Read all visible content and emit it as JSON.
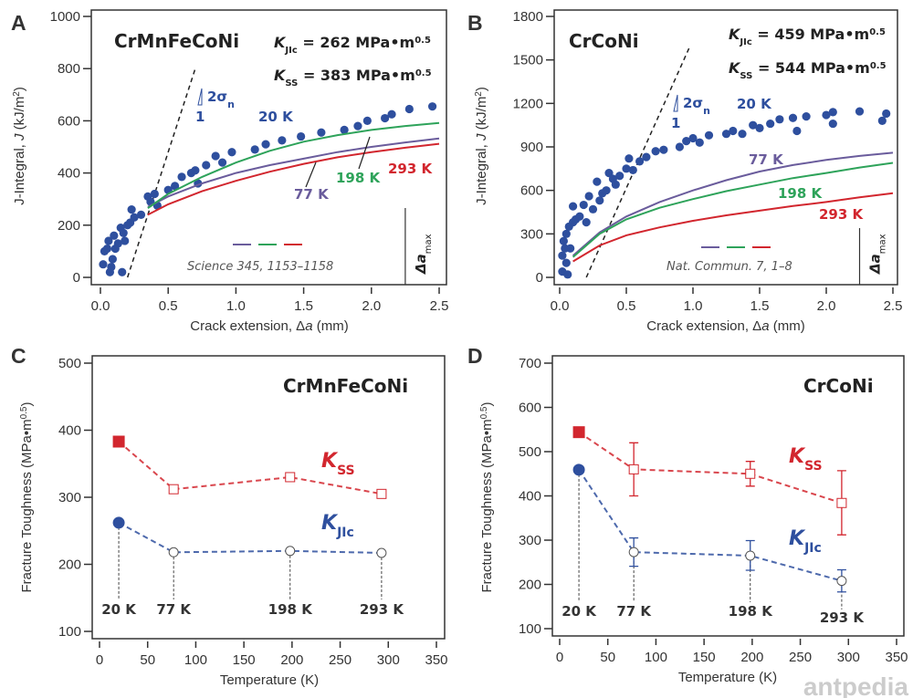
{
  "colors": {
    "blue": "#2e4f9e",
    "purple": "#6a5c9c",
    "green": "#2ea35a",
    "red": "#d2262e",
    "dash": "#222",
    "kss": "#d2262e",
    "kjic": "#2e4f9e"
  },
  "watermark": "antpedia",
  "chart_data": [
    {
      "panel": "A",
      "type": "scatter+line",
      "title": "CrMnFeCoNi",
      "kjic": {
        "symbol": "K",
        "sub": "JIc",
        "text": " = 262 MPa•m",
        "sup": "0.5"
      },
      "kss": {
        "symbol": "K",
        "sub": "SS",
        "text": " = 383 MPa•m",
        "sup": "0.5"
      },
      "xlabel": {
        "pre": "Crack extension, ",
        "sym": "Δ",
        "ital": "a",
        "post": " (mm)"
      },
      "ylabel": {
        "pre": "J-Integral, ",
        "ital": "J",
        "post": " (kJ/m",
        "sup": "2",
        "end": ")"
      },
      "xlim": [
        0,
        2.5
      ],
      "ylim": [
        0,
        1000
      ],
      "xticks": [
        "0.0",
        "0.5",
        "1.0",
        "1.5",
        "2.0",
        "2.5"
      ],
      "xtickvals": [
        0,
        0.5,
        1,
        1.5,
        2,
        2.5
      ],
      "yticks": [
        "0",
        "200",
        "400",
        "600",
        "800",
        "1000"
      ],
      "ytickvals": [
        0,
        200,
        400,
        600,
        800,
        1000
      ],
      "slope_label": {
        "text": "2σ",
        "sub": "n",
        "one": "1"
      },
      "blunting_line": [
        [
          0.2,
          0
        ],
        [
          0.7,
          800
        ]
      ],
      "reference": "Science 345, 1153–1158",
      "delta_a_max": {
        "sym": "Δa",
        "sub": "max",
        "x": 2.25
      },
      "series": [
        {
          "name": "20 K",
          "kind": "scatter",
          "color": "blue",
          "points": [
            [
              0.02,
              50
            ],
            [
              0.03,
              100
            ],
            [
              0.05,
              110
            ],
            [
              0.06,
              140
            ],
            [
              0.07,
              20
            ],
            [
              0.08,
              40
            ],
            [
              0.09,
              70
            ],
            [
              0.1,
              160
            ],
            [
              0.11,
              110
            ],
            [
              0.13,
              130
            ],
            [
              0.15,
              190
            ],
            [
              0.16,
              20
            ],
            [
              0.17,
              170
            ],
            [
              0.18,
              140
            ],
            [
              0.2,
              200
            ],
            [
              0.22,
              210
            ],
            [
              0.23,
              260
            ],
            [
              0.25,
              230
            ],
            [
              0.3,
              240
            ],
            [
              0.35,
              310
            ],
            [
              0.37,
              290
            ],
            [
              0.4,
              320
            ],
            [
              0.42,
              275
            ],
            [
              0.5,
              335
            ],
            [
              0.55,
              350
            ],
            [
              0.6,
              385
            ],
            [
              0.67,
              400
            ],
            [
              0.7,
              410
            ],
            [
              0.72,
              360
            ],
            [
              0.78,
              430
            ],
            [
              0.85,
              465
            ],
            [
              0.9,
              440
            ],
            [
              0.97,
              480
            ],
            [
              1.14,
              490
            ],
            [
              1.22,
              510
            ],
            [
              1.34,
              525
            ],
            [
              1.48,
              540
            ],
            [
              1.63,
              555
            ],
            [
              1.8,
              565
            ],
            [
              1.9,
              580
            ],
            [
              1.97,
              600
            ],
            [
              2.1,
              610
            ],
            [
              2.15,
              625
            ],
            [
              2.28,
              645
            ],
            [
              2.45,
              655
            ]
          ]
        },
        {
          "name": "77 K",
          "kind": "line",
          "color": "purple",
          "points": [
            [
              0.35,
              270
            ],
            [
              0.5,
              310
            ],
            [
              0.75,
              360
            ],
            [
              1.0,
              400
            ],
            [
              1.25,
              430
            ],
            [
              1.5,
              455
            ],
            [
              1.75,
              480
            ],
            [
              2.0,
              500
            ],
            [
              2.25,
              517
            ],
            [
              2.5,
              532
            ]
          ]
        },
        {
          "name": "198 K",
          "kind": "line",
          "color": "green",
          "points": [
            [
              0.35,
              265
            ],
            [
              0.5,
              320
            ],
            [
              0.75,
              385
            ],
            [
              1.0,
              440
            ],
            [
              1.25,
              485
            ],
            [
              1.5,
              520
            ],
            [
              1.75,
              545
            ],
            [
              2.0,
              565
            ],
            [
              2.25,
              580
            ],
            [
              2.5,
              592
            ]
          ]
        },
        {
          "name": "293 K",
          "kind": "line",
          "color": "red",
          "points": [
            [
              0.35,
              240
            ],
            [
              0.5,
              280
            ],
            [
              0.75,
              330
            ],
            [
              1.0,
              370
            ],
            [
              1.25,
              405
            ],
            [
              1.5,
              435
            ],
            [
              1.75,
              460
            ],
            [
              2.0,
              480
            ],
            [
              2.25,
              497
            ],
            [
              2.5,
              512
            ]
          ]
        }
      ]
    },
    {
      "panel": "B",
      "type": "scatter+line",
      "title": "CrCoNi",
      "kjic": {
        "symbol": "K",
        "sub": "JIc",
        "text": " = 459 MPa•m",
        "sup": "0.5"
      },
      "kss": {
        "symbol": "K",
        "sub": "SS",
        "text": " = 544 MPa•m",
        "sup": "0.5"
      },
      "xlabel": {
        "pre": "Crack extension, ",
        "sym": "Δ",
        "ital": "a",
        "post": " (mm)"
      },
      "ylabel": {
        "pre": "J-Integral, ",
        "ital": "J",
        "post": " (kJ/m",
        "sup": "2",
        "end": ")"
      },
      "xlim": [
        0,
        2.5
      ],
      "ylim": [
        0,
        1800
      ],
      "xticks": [
        "0.0",
        "0.5",
        "1.0",
        "1.5",
        "2.0",
        "2.5"
      ],
      "xtickvals": [
        0,
        0.5,
        1,
        1.5,
        2,
        2.5
      ],
      "yticks": [
        "0",
        "300",
        "600",
        "900",
        "1200",
        "1500",
        "1800"
      ],
      "ytickvals": [
        0,
        300,
        600,
        900,
        1200,
        1500,
        1800
      ],
      "slope_label": {
        "text": "2σ",
        "sub": "n",
        "one": "1"
      },
      "blunting_line": [
        [
          0.2,
          0
        ],
        [
          0.98,
          1600
        ]
      ],
      "reference": "Nat. Commun. 7, 1–8",
      "delta_a_max": {
        "sym": "Δa",
        "sub": "max",
        "x": 2.25
      },
      "series": [
        {
          "name": "20 K",
          "kind": "scatter",
          "color": "blue",
          "points": [
            [
              0.02,
              150
            ],
            [
              0.02,
              40
            ],
            [
              0.03,
              250
            ],
            [
              0.04,
              200
            ],
            [
              0.05,
              100
            ],
            [
              0.05,
              300
            ],
            [
              0.06,
              20
            ],
            [
              0.07,
              350
            ],
            [
              0.08,
              200
            ],
            [
              0.1,
              380
            ],
            [
              0.1,
              490
            ],
            [
              0.12,
              400
            ],
            [
              0.15,
              420
            ],
            [
              0.18,
              500
            ],
            [
              0.2,
              380
            ],
            [
              0.22,
              560
            ],
            [
              0.25,
              470
            ],
            [
              0.28,
              660
            ],
            [
              0.3,
              530
            ],
            [
              0.32,
              580
            ],
            [
              0.35,
              600
            ],
            [
              0.37,
              720
            ],
            [
              0.4,
              680
            ],
            [
              0.42,
              640
            ],
            [
              0.45,
              700
            ],
            [
              0.5,
              750
            ],
            [
              0.52,
              820
            ],
            [
              0.55,
              740
            ],
            [
              0.6,
              800
            ],
            [
              0.65,
              830
            ],
            [
              0.72,
              870
            ],
            [
              0.78,
              880
            ],
            [
              0.9,
              900
            ],
            [
              0.95,
              940
            ],
            [
              1.0,
              960
            ],
            [
              1.05,
              930
            ],
            [
              1.12,
              980
            ],
            [
              1.25,
              990
            ],
            [
              1.3,
              1010
            ],
            [
              1.37,
              990
            ],
            [
              1.45,
              1050
            ],
            [
              1.5,
              1030
            ],
            [
              1.58,
              1060
            ],
            [
              1.65,
              1090
            ],
            [
              1.75,
              1100
            ],
            [
              1.78,
              1010
            ],
            [
              1.85,
              1110
            ],
            [
              2.0,
              1120
            ],
            [
              2.05,
              1140
            ],
            [
              2.05,
              1060
            ],
            [
              2.25,
              1145
            ],
            [
              2.42,
              1080
            ],
            [
              2.45,
              1130
            ]
          ]
        },
        {
          "name": "77 K",
          "kind": "line",
          "color": "purple",
          "points": [
            [
              0.1,
              150
            ],
            [
              0.3,
              310
            ],
            [
              0.5,
              420
            ],
            [
              0.75,
              520
            ],
            [
              1.0,
              600
            ],
            [
              1.25,
              670
            ],
            [
              1.5,
              730
            ],
            [
              1.75,
              775
            ],
            [
              2.0,
              810
            ],
            [
              2.25,
              838
            ],
            [
              2.5,
              860
            ]
          ]
        },
        {
          "name": "198 K",
          "kind": "line",
          "color": "green",
          "points": [
            [
              0.1,
              140
            ],
            [
              0.3,
              300
            ],
            [
              0.5,
              400
            ],
            [
              0.75,
              480
            ],
            [
              1.0,
              540
            ],
            [
              1.25,
              595
            ],
            [
              1.5,
              640
            ],
            [
              1.75,
              685
            ],
            [
              2.0,
              720
            ],
            [
              2.25,
              758
            ],
            [
              2.5,
              790
            ]
          ]
        },
        {
          "name": "293 K",
          "kind": "line",
          "color": "red",
          "points": [
            [
              0.1,
              110
            ],
            [
              0.3,
              220
            ],
            [
              0.5,
              290
            ],
            [
              0.75,
              345
            ],
            [
              1.0,
              390
            ],
            [
              1.25,
              428
            ],
            [
              1.5,
              460
            ],
            [
              1.75,
              492
            ],
            [
              2.0,
              520
            ],
            [
              2.25,
              552
            ],
            [
              2.5,
              580
            ]
          ]
        }
      ]
    },
    {
      "panel": "C",
      "type": "line",
      "title": "CrMnFeCoNi",
      "xlabel": {
        "pre": "Temperature (K)"
      },
      "ylabel": {
        "pre": "Fracture Toughness (MPa•m",
        "sup": "0.5",
        "end": ")"
      },
      "xlim": [
        0,
        350
      ],
      "ylim": [
        100,
        500
      ],
      "xticks": [
        "0",
        "50",
        "100",
        "150",
        "200",
        "250",
        "300",
        "350"
      ],
      "xtickvals": [
        0,
        50,
        100,
        150,
        200,
        250,
        300,
        350
      ],
      "yticks": [
        "100",
        "200",
        "300",
        "400",
        "500"
      ],
      "ytickvals": [
        100,
        200,
        300,
        400,
        500
      ],
      "temp_labels": [
        "20 K",
        "77 K",
        "198 K",
        "293 K"
      ],
      "series": [
        {
          "name": "K",
          "sub": "SS",
          "color": "kss",
          "marker": "square",
          "points": [
            [
              20,
              383
            ],
            [
              77,
              312
            ],
            [
              198,
              330
            ],
            [
              293,
              305
            ]
          ]
        },
        {
          "name": "K",
          "sub": "JIc",
          "color": "kjic",
          "marker": "circle",
          "points": [
            [
              20,
              262
            ],
            [
              77,
              218
            ],
            [
              198,
              220
            ],
            [
              293,
              217
            ]
          ]
        }
      ]
    },
    {
      "panel": "D",
      "type": "line",
      "title": "CrCoNi",
      "xlabel": {
        "pre": "Temperature (K)"
      },
      "ylabel": {
        "pre": "Fracture Toughness (MPa•m",
        "sup": "0.5",
        "end": ")"
      },
      "xlim": [
        0,
        350
      ],
      "ylim": [
        100,
        700
      ],
      "xticks": [
        "0",
        "50",
        "100",
        "150",
        "200",
        "250",
        "300",
        "350"
      ],
      "xtickvals": [
        0,
        50,
        100,
        150,
        200,
        250,
        300,
        350
      ],
      "yticks": [
        "100",
        "200",
        "300",
        "400",
        "500",
        "600",
        "700"
      ],
      "ytickvals": [
        100,
        200,
        300,
        400,
        500,
        600,
        700
      ],
      "temp_labels": [
        "20 K",
        "77 K",
        "198 K",
        "293 K"
      ],
      "series": [
        {
          "name": "K",
          "sub": "SS",
          "color": "kss",
          "marker": "square",
          "points": [
            [
              20,
              544
            ],
            [
              77,
              460
            ],
            [
              198,
              450
            ],
            [
              293,
              384
            ]
          ],
          "errors": [
            null,
            [
              400,
              520
            ],
            [
              422,
              478
            ],
            [
              312,
              457
            ]
          ]
        },
        {
          "name": "K",
          "sub": "JIc",
          "color": "kjic",
          "marker": "circle",
          "points": [
            [
              20,
              459
            ],
            [
              77,
              273
            ],
            [
              198,
              265
            ],
            [
              293,
              208
            ]
          ],
          "errors": [
            null,
            [
              241,
              305
            ],
            [
              232,
              299
            ],
            [
              183,
              233
            ]
          ]
        }
      ]
    }
  ]
}
